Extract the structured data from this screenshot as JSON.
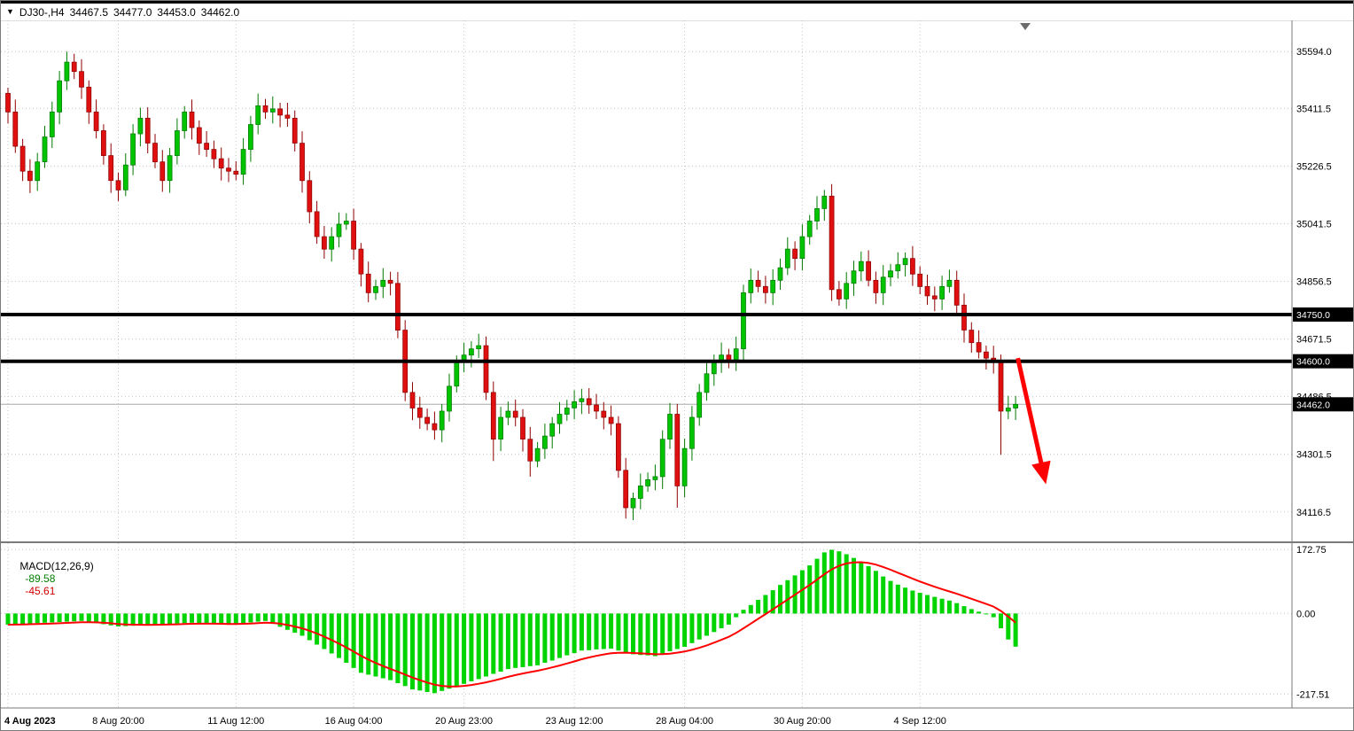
{
  "header": {
    "symbol_marker": "▼",
    "symbol_period": "DJ30-,H4",
    "open": "34467.5",
    "high": "34477.0",
    "low": "34453.0",
    "close": "34462.0"
  },
  "macd_label": {
    "name": "MACD(12,26,9)",
    "main_value": "-89.58",
    "signal_value": "-45.61"
  },
  "price_axis_labels": [
    "35594.0",
    "35411.5",
    "35226.5",
    "35041.5",
    "34856.5",
    "34671.5",
    "34486.5",
    "34301.5",
    "34116.5"
  ],
  "macd_axis_labels": [
    "172.75",
    "0.00",
    "-217.51"
  ],
  "time_axis_labels": [
    "4 Aug 2023",
    "8 Aug 20:00",
    "11 Aug 12:00",
    "16 Aug 04:00",
    "20 Aug 23:00",
    "23 Aug 12:00",
    "28 Aug 04:00",
    "30 Aug 20:00",
    "4 Sep 12:00"
  ],
  "levels": [
    {
      "price": 34750.0,
      "label": "34750.0"
    },
    {
      "price": 34600.0,
      "label": "34600.0"
    }
  ],
  "current_price": {
    "price": 34462.0,
    "label": "34462.0"
  },
  "colors": {
    "bull": "#00c400",
    "bull_border": "#007a00",
    "bear": "#e01010",
    "bear_border": "#8f0000",
    "histogram": "#00d400",
    "signal_line": "#ff0000",
    "grid": "#c6c6c6",
    "level_line": "#000000",
    "badge_bg": "#000000",
    "badge_text": "#ffffff",
    "arrow": "#ff0000",
    "axis_text": "#000000",
    "current_price_line": "#a8a8a8",
    "frame": "#7a7a7a"
  },
  "chart_data": {
    "type": "candlestick",
    "symbol": "DJ30-",
    "timeframe": "H4",
    "title": "DJ30-,H4",
    "price_range": [
      34022,
      35694
    ],
    "first_open": 35460,
    "closes": [
      35400,
      35290,
      35210,
      35180,
      35240,
      35320,
      35400,
      35500,
      35560,
      35530,
      35480,
      35400,
      35340,
      35260,
      35180,
      35150,
      35230,
      35330,
      35380,
      35300,
      35240,
      35180,
      35260,
      35340,
      35400,
      35350,
      35300,
      35280,
      35250,
      35220,
      35210,
      35200,
      35280,
      35360,
      35420,
      35400,
      35410,
      35390,
      35380,
      35300,
      35180,
      35080,
      35000,
      34960,
      35000,
      35040,
      35050,
      34960,
      34880,
      34820,
      34840,
      34860,
      34850,
      34700,
      34500,
      34450,
      34420,
      34400,
      34380,
      34440,
      34520,
      34600,
      34620,
      34640,
      34650,
      34500,
      34350,
      34420,
      34440,
      34420,
      34350,
      34280,
      34320,
      34360,
      34400,
      34430,
      34450,
      34470,
      34480,
      34460,
      34440,
      34420,
      34400,
      34250,
      34130,
      34160,
      34200,
      34220,
      34230,
      34350,
      34430,
      34200,
      34320,
      34420,
      34500,
      34560,
      34600,
      34620,
      34600,
      34640,
      34820,
      34860,
      34840,
      34820,
      34860,
      34900,
      34960,
      34930,
      35000,
      35050,
      35090,
      35130,
      34830,
      34800,
      34850,
      34890,
      34920,
      34860,
      34820,
      34870,
      34890,
      34910,
      34930,
      34880,
      34840,
      34810,
      34800,
      34840,
      34860,
      34780,
      34700,
      34660,
      34630,
      34610,
      34600,
      34440,
      34450,
      34462
    ],
    "high_overrides": {
      "8": 35594,
      "111": 35150
    },
    "low_overrides": {
      "66": 34280,
      "71": 34230,
      "84": 34095,
      "91": 34130,
      "135": 34300
    },
    "tick_indices": [
      0,
      15,
      31,
      47,
      62,
      77,
      92,
      108,
      124
    ],
    "support_resistance": [
      34750.0,
      34600.0
    ],
    "last_price": 34462.0,
    "arrow_annotation": {
      "from": {
        "i": 137.3,
        "price": 34610
      },
      "to": {
        "i": 140.8,
        "price": 34240
      }
    },
    "macd": {
      "type": "bar+line",
      "params": "12,26,9",
      "main_value": -89.58,
      "signal_value": -45.61,
      "signal_period": 9,
      "ylim": [
        -255,
        190
      ],
      "histogram": [
        -30,
        -29,
        -28,
        -27,
        -26,
        -25,
        -24,
        -23,
        -22,
        -21,
        -20,
        -23,
        -26,
        -29,
        -32,
        -35,
        -34,
        -33,
        -32,
        -31,
        -30,
        -29,
        -28,
        -27,
        -26,
        -25,
        -26,
        -27,
        -28,
        -29,
        -30,
        -28,
        -26,
        -24,
        -22,
        -20,
        -28,
        -36,
        -44,
        -52,
        -60,
        -72,
        -84,
        -96,
        -108,
        -120,
        -133,
        -147,
        -160,
        -165,
        -170,
        -175,
        -180,
        -188,
        -196,
        -205,
        -208,
        -212,
        -215,
        -209,
        -203,
        -196,
        -190,
        -183,
        -177,
        -170,
        -163,
        -157,
        -150,
        -147,
        -145,
        -142,
        -140,
        -133,
        -127,
        -120,
        -113,
        -107,
        -100,
        -99,
        -97,
        -96,
        -95,
        -100,
        -105,
        -110,
        -112,
        -113,
        -115,
        -109,
        -102,
        -96,
        -90,
        -80,
        -70,
        -60,
        -50,
        -40,
        -30,
        -10,
        10,
        23,
        37,
        50,
        63,
        77,
        90,
        103,
        117,
        130,
        148,
        165,
        172,
        168,
        160,
        150,
        140,
        128,
        115,
        100,
        88,
        78,
        70,
        62,
        56,
        50,
        45,
        40,
        35,
        28,
        20,
        12,
        5,
        -2,
        -10,
        -40,
        -70,
        -89.58
      ]
    }
  }
}
